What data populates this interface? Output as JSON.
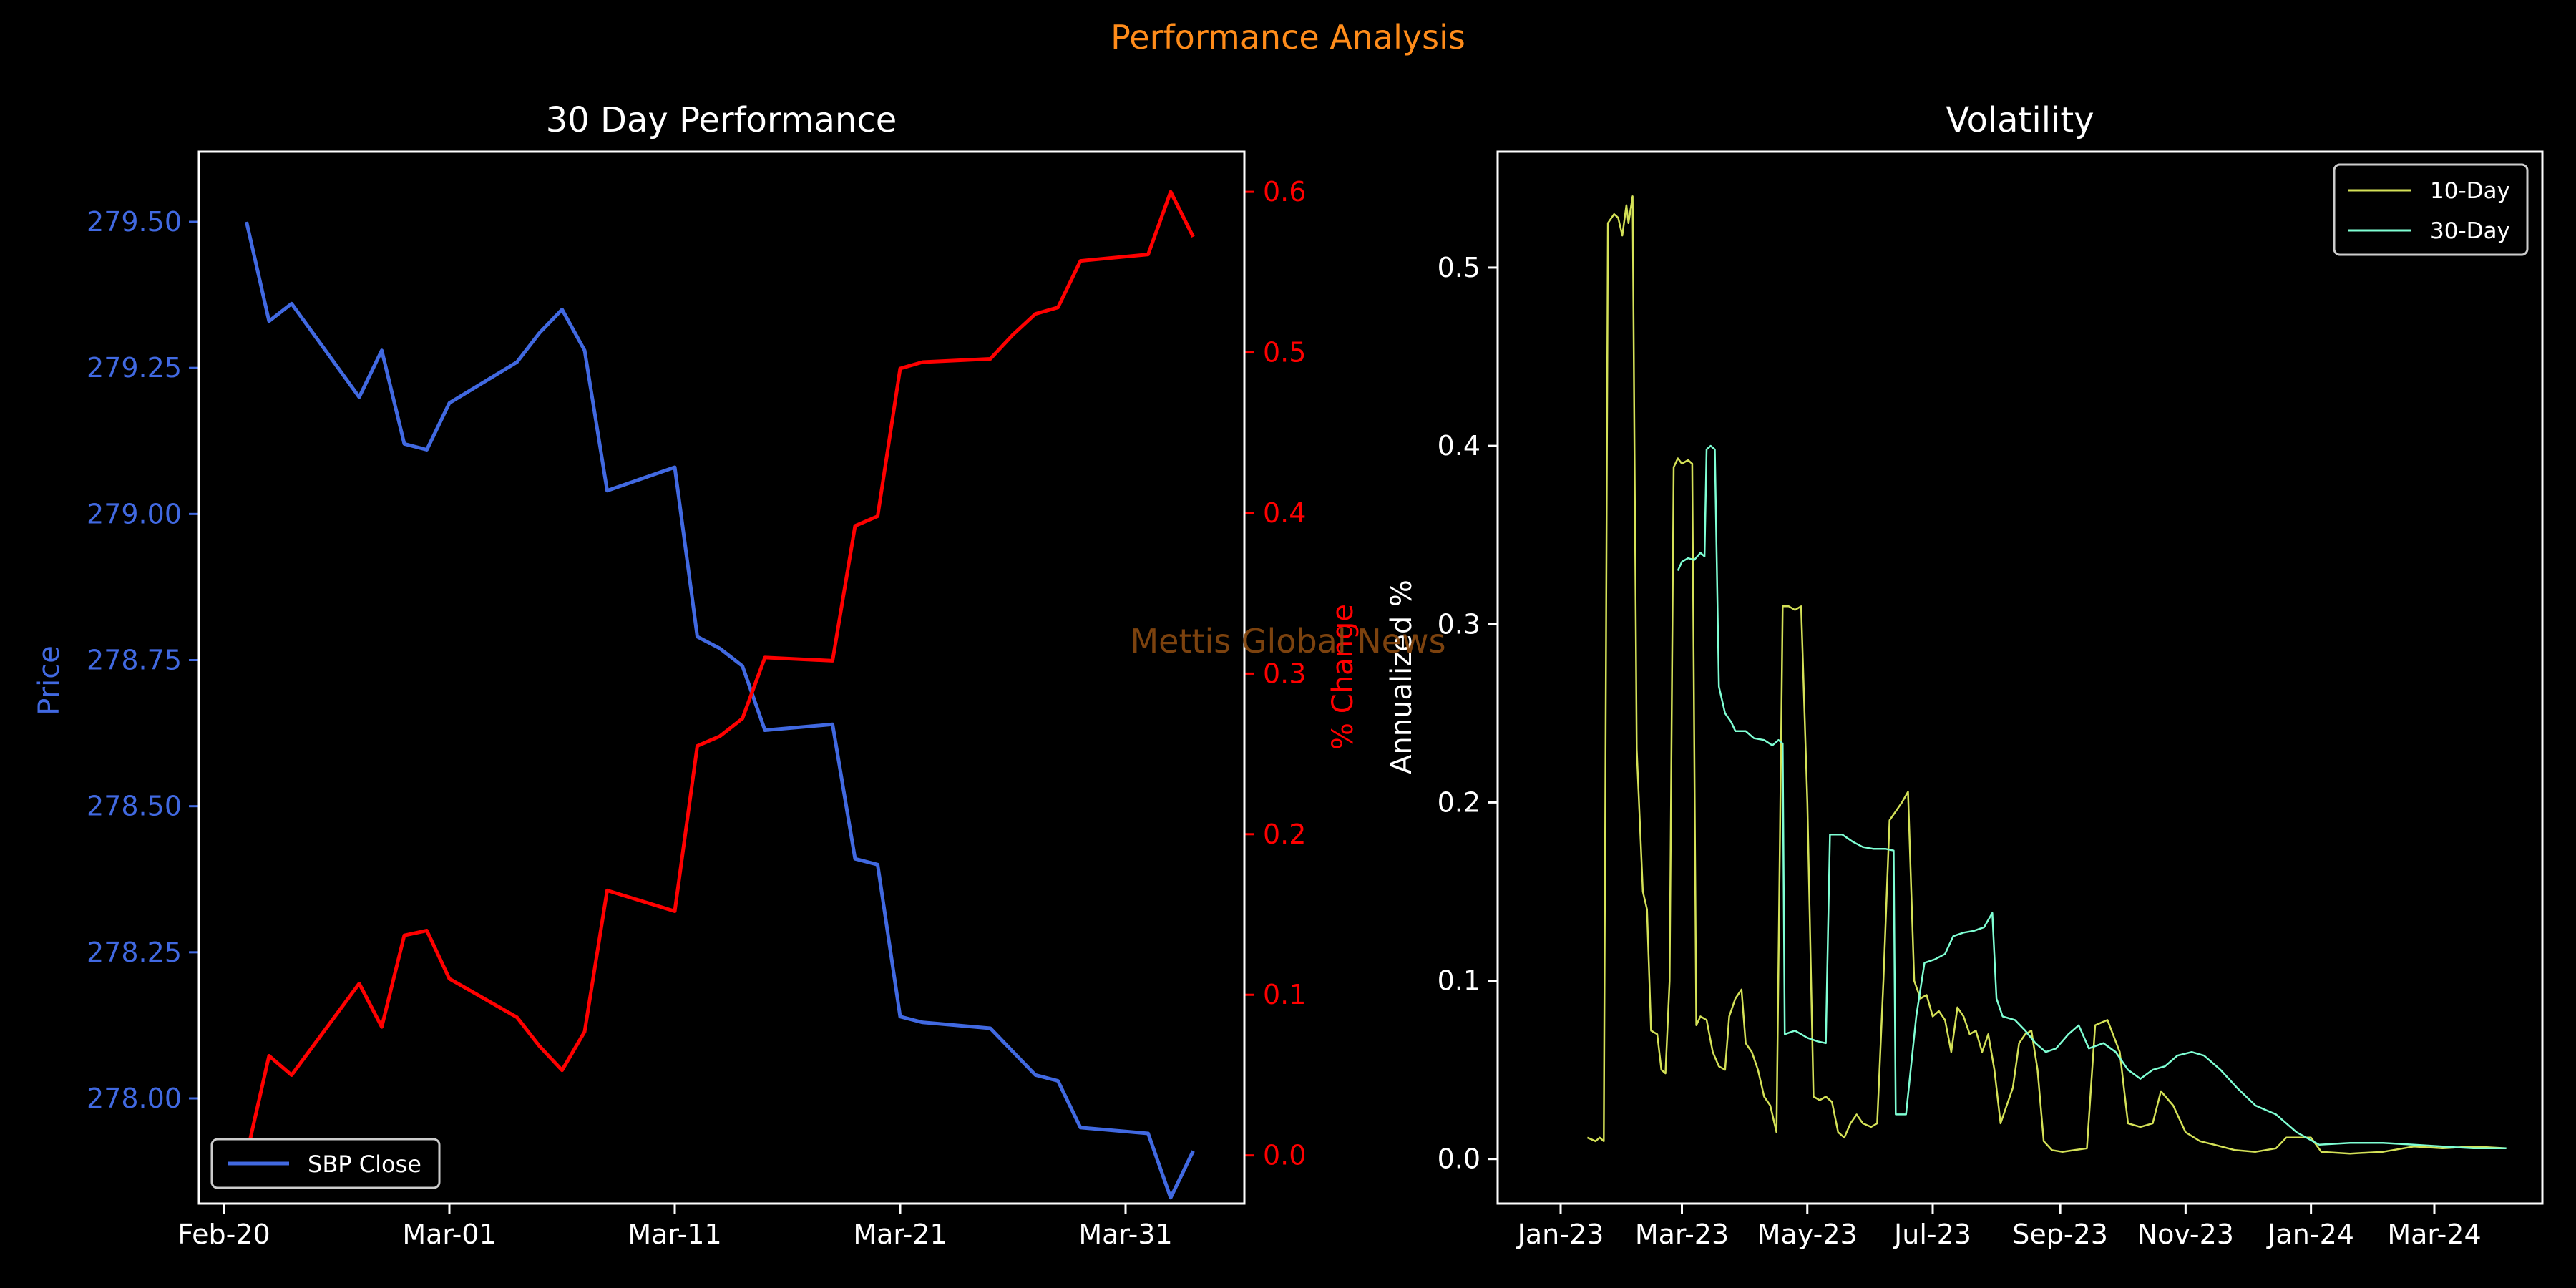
{
  "suptitle": "Performance Analysis",
  "watermark": "Mettis Global News",
  "colors": {
    "background": "#000000",
    "suptitle": "#ff8c1a",
    "watermark": "#8a4a10",
    "price": "#4169e1",
    "pct": "#ff0000",
    "axis": "#ffffff",
    "vol10": "#d4e157",
    "vol30": "#7fffd4"
  },
  "chart_data": [
    {
      "type": "line",
      "title": "30 Day Performance",
      "xlabel": "",
      "ylabel_left": "Price",
      "ylabel_right": "% Change",
      "x_tick_labels": [
        "Feb-20",
        "Mar-01",
        "Mar-11",
        "Mar-21",
        "Mar-31"
      ],
      "ylim_left": [
        277.82,
        279.62
      ],
      "y_ticks_left": [
        "278.00",
        "278.25",
        "278.50",
        "278.75",
        "279.00",
        "279.25",
        "279.50"
      ],
      "ylim_right": [
        -0.03,
        0.625
      ],
      "y_ticks_right": [
        "0.0",
        "0.1",
        "0.2",
        "0.3",
        "0.4",
        "0.5",
        "0.6"
      ],
      "legend": {
        "position": "lower-left",
        "entries": [
          "SBP Close"
        ]
      },
      "x": [
        "02-21",
        "02-22",
        "02-23",
        "02-26",
        "02-27",
        "02-28",
        "02-29",
        "03-01",
        "03-04",
        "03-05",
        "03-06",
        "03-07",
        "03-08",
        "03-11",
        "03-12",
        "03-13",
        "03-14",
        "03-15",
        "03-18",
        "03-19",
        "03-20",
        "03-21",
        "03-22",
        "03-25",
        "03-26",
        "03-27",
        "03-28",
        "03-29",
        "04-01",
        "04-02",
        "04-03"
      ],
      "series": [
        {
          "name": "SBP Close",
          "axis": "left",
          "values": [
            279.5,
            279.33,
            279.36,
            279.2,
            279.28,
            279.12,
            279.11,
            279.19,
            279.26,
            279.31,
            279.35,
            279.28,
            279.04,
            279.08,
            278.79,
            278.77,
            278.74,
            278.63,
            278.64,
            278.41,
            278.4,
            278.14,
            278.13,
            278.12,
            278.08,
            278.04,
            278.03,
            277.95,
            277.94,
            277.83,
            277.91
          ]
        },
        {
          "name": "% Change",
          "axis": "right",
          "values": [
            0.0,
            0.062,
            0.05,
            0.107,
            0.08,
            0.137,
            0.14,
            0.11,
            0.086,
            0.068,
            0.053,
            0.077,
            0.165,
            0.152,
            0.255,
            0.261,
            0.272,
            0.31,
            0.308,
            0.392,
            0.398,
            0.49,
            0.494,
            0.496,
            0.511,
            0.524,
            0.528,
            0.557,
            0.561,
            0.6,
            0.572
          ]
        }
      ]
    },
    {
      "type": "line",
      "title": "Volatility",
      "xlabel": "",
      "ylabel": "Annualized %",
      "x_tick_labels": [
        "Jan-23",
        "Mar-23",
        "May-23",
        "Jul-23",
        "Sep-23",
        "Nov-23",
        "Jan-24",
        "Mar-24"
      ],
      "ylim": [
        -0.025,
        0.565
      ],
      "y_ticks": [
        "0.0",
        "0.1",
        "0.2",
        "0.3",
        "0.4",
        "0.5"
      ],
      "legend": {
        "position": "top-right",
        "entries": [
          "10-Day",
          "30-Day"
        ]
      },
      "series": [
        {
          "name": "10-Day",
          "points": [
            [
              "2023-01-14",
              0.012
            ],
            [
              "2023-01-18",
              0.01
            ],
            [
              "2023-01-20",
              0.012
            ],
            [
              "2023-01-22",
              0.01
            ],
            [
              "2023-01-24",
              0.525
            ],
            [
              "2023-01-27",
              0.53
            ],
            [
              "2023-01-29",
              0.528
            ],
            [
              "2023-01-31",
              0.518
            ],
            [
              "2023-02-02",
              0.535
            ],
            [
              "2023-02-03",
              0.525
            ],
            [
              "2023-02-05",
              0.54
            ],
            [
              "2023-02-07",
              0.23
            ],
            [
              "2023-02-10",
              0.15
            ],
            [
              "2023-02-12",
              0.14
            ],
            [
              "2023-02-14",
              0.072
            ],
            [
              "2023-02-17",
              0.07
            ],
            [
              "2023-02-19",
              0.05
            ],
            [
              "2023-02-21",
              0.048
            ],
            [
              "2023-02-23",
              0.1
            ],
            [
              "2023-02-25",
              0.388
            ],
            [
              "2023-02-27",
              0.393
            ],
            [
              "2023-03-01",
              0.39
            ],
            [
              "2023-03-04",
              0.392
            ],
            [
              "2023-03-06",
              0.39
            ],
            [
              "2023-03-08",
              0.075
            ],
            [
              "2023-03-10",
              0.08
            ],
            [
              "2023-03-13",
              0.078
            ],
            [
              "2023-03-16",
              0.06
            ],
            [
              "2023-03-19",
              0.052
            ],
            [
              "2023-03-22",
              0.05
            ],
            [
              "2023-03-24",
              0.08
            ],
            [
              "2023-03-27",
              0.09
            ],
            [
              "2023-03-30",
              0.095
            ],
            [
              "2023-04-01",
              0.065
            ],
            [
              "2023-04-04",
              0.06
            ],
            [
              "2023-04-07",
              0.05
            ],
            [
              "2023-04-10",
              0.035
            ],
            [
              "2023-04-13",
              0.03
            ],
            [
              "2023-04-16",
              0.015
            ],
            [
              "2023-04-19",
              0.31
            ],
            [
              "2023-04-22",
              0.31
            ],
            [
              "2023-04-25",
              0.308
            ],
            [
              "2023-04-28",
              0.31
            ],
            [
              "2023-05-01",
              0.2
            ],
            [
              "2023-05-04",
              0.035
            ],
            [
              "2023-05-07",
              0.033
            ],
            [
              "2023-05-10",
              0.035
            ],
            [
              "2023-05-13",
              0.032
            ],
            [
              "2023-05-16",
              0.015
            ],
            [
              "2023-05-19",
              0.012
            ],
            [
              "2023-05-22",
              0.02
            ],
            [
              "2023-05-25",
              0.025
            ],
            [
              "2023-05-28",
              0.02
            ],
            [
              "2023-06-01",
              0.018
            ],
            [
              "2023-06-04",
              0.02
            ],
            [
              "2023-06-07",
              0.1
            ],
            [
              "2023-06-10",
              0.19
            ],
            [
              "2023-06-13",
              0.195
            ],
            [
              "2023-06-16",
              0.2
            ],
            [
              "2023-06-19",
              0.206
            ],
            [
              "2023-06-22",
              0.1
            ],
            [
              "2023-06-25",
              0.09
            ],
            [
              "2023-06-28",
              0.092
            ],
            [
              "2023-07-01",
              0.08
            ],
            [
              "2023-07-04",
              0.083
            ],
            [
              "2023-07-07",
              0.078
            ],
            [
              "2023-07-10",
              0.06
            ],
            [
              "2023-07-13",
              0.085
            ],
            [
              "2023-07-16",
              0.08
            ],
            [
              "2023-07-19",
              0.07
            ],
            [
              "2023-07-22",
              0.072
            ],
            [
              "2023-07-25",
              0.06
            ],
            [
              "2023-07-28",
              0.07
            ],
            [
              "2023-07-31",
              0.05
            ],
            [
              "2023-08-03",
              0.02
            ],
            [
              "2023-08-06",
              0.03
            ],
            [
              "2023-08-09",
              0.04
            ],
            [
              "2023-08-12",
              0.065
            ],
            [
              "2023-08-15",
              0.07
            ],
            [
              "2023-08-18",
              0.072
            ],
            [
              "2023-08-21",
              0.05
            ],
            [
              "2023-08-24",
              0.01
            ],
            [
              "2023-08-28",
              0.005
            ],
            [
              "2023-09-02",
              0.004
            ],
            [
              "2023-09-08",
              0.005
            ],
            [
              "2023-09-14",
              0.006
            ],
            [
              "2023-09-18",
              0.075
            ],
            [
              "2023-09-24",
              0.078
            ],
            [
              "2023-09-30",
              0.06
            ],
            [
              "2023-10-04",
              0.02
            ],
            [
              "2023-10-10",
              0.018
            ],
            [
              "2023-10-16",
              0.02
            ],
            [
              "2023-10-20",
              0.038
            ],
            [
              "2023-10-26",
              0.03
            ],
            [
              "2023-11-01",
              0.015
            ],
            [
              "2023-11-08",
              0.01
            ],
            [
              "2023-11-15",
              0.008
            ],
            [
              "2023-11-25",
              0.005
            ],
            [
              "2023-12-05",
              0.004
            ],
            [
              "2023-12-15",
              0.006
            ],
            [
              "2023-12-20",
              0.012
            ],
            [
              "2024-01-01",
              0.012
            ],
            [
              "2024-01-06",
              0.004
            ],
            [
              "2024-01-20",
              0.003
            ],
            [
              "2024-02-05",
              0.004
            ],
            [
              "2024-02-20",
              0.007
            ],
            [
              "2024-03-05",
              0.006
            ],
            [
              "2024-03-20",
              0.007
            ],
            [
              "2024-04-05",
              0.006
            ]
          ]
        },
        {
          "name": "30-Day",
          "points": [
            [
              "2023-02-27",
              0.33
            ],
            [
              "2023-03-01",
              0.335
            ],
            [
              "2023-03-04",
              0.337
            ],
            [
              "2023-03-07",
              0.336
            ],
            [
              "2023-03-10",
              0.34
            ],
            [
              "2023-03-12",
              0.338
            ],
            [
              "2023-03-13",
              0.398
            ],
            [
              "2023-03-15",
              0.4
            ],
            [
              "2023-03-17",
              0.398
            ],
            [
              "2023-03-19",
              0.265
            ],
            [
              "2023-03-22",
              0.25
            ],
            [
              "2023-03-25",
              0.245
            ],
            [
              "2023-03-27",
              0.24
            ],
            [
              "2023-04-01",
              0.24
            ],
            [
              "2023-04-05",
              0.236
            ],
            [
              "2023-04-10",
              0.235
            ],
            [
              "2023-04-14",
              0.232
            ],
            [
              "2023-04-17",
              0.235
            ],
            [
              "2023-04-19",
              0.233
            ],
            [
              "2023-04-20",
              0.07
            ],
            [
              "2023-04-25",
              0.072
            ],
            [
              "2023-05-01",
              0.068
            ],
            [
              "2023-05-06",
              0.066
            ],
            [
              "2023-05-10",
              0.065
            ],
            [
              "2023-05-12",
              0.182
            ],
            [
              "2023-05-18",
              0.182
            ],
            [
              "2023-05-23",
              0.178
            ],
            [
              "2023-05-28",
              0.175
            ],
            [
              "2023-06-02",
              0.174
            ],
            [
              "2023-06-08",
              0.174
            ],
            [
              "2023-06-12",
              0.173
            ],
            [
              "2023-06-13",
              0.025
            ],
            [
              "2023-06-18",
              0.025
            ],
            [
              "2023-06-23",
              0.08
            ],
            [
              "2023-06-27",
              0.11
            ],
            [
              "2023-07-02",
              0.112
            ],
            [
              "2023-07-07",
              0.115
            ],
            [
              "2023-07-11",
              0.125
            ],
            [
              "2023-07-16",
              0.127
            ],
            [
              "2023-07-21",
              0.128
            ],
            [
              "2023-07-26",
              0.13
            ],
            [
              "2023-07-30",
              0.138
            ],
            [
              "2023-08-01",
              0.09
            ],
            [
              "2023-08-04",
              0.08
            ],
            [
              "2023-08-10",
              0.078
            ],
            [
              "2023-08-15",
              0.072
            ],
            [
              "2023-08-20",
              0.065
            ],
            [
              "2023-08-25",
              0.06
            ],
            [
              "2023-08-30",
              0.062
            ],
            [
              "2023-09-05",
              0.07
            ],
            [
              "2023-09-10",
              0.075
            ],
            [
              "2023-09-15",
              0.062
            ],
            [
              "2023-09-22",
              0.065
            ],
            [
              "2023-09-28",
              0.06
            ],
            [
              "2023-10-04",
              0.05
            ],
            [
              "2023-10-10",
              0.045
            ],
            [
              "2023-10-16",
              0.05
            ],
            [
              "2023-10-22",
              0.052
            ],
            [
              "2023-10-28",
              0.058
            ],
            [
              "2023-11-04",
              0.06
            ],
            [
              "2023-11-10",
              0.058
            ],
            [
              "2023-11-18",
              0.05
            ],
            [
              "2023-11-26",
              0.04
            ],
            [
              "2023-12-05",
              0.03
            ],
            [
              "2023-12-15",
              0.025
            ],
            [
              "2023-12-25",
              0.015
            ],
            [
              "2024-01-05",
              0.008
            ],
            [
              "2024-01-20",
              0.009
            ],
            [
              "2024-02-05",
              0.009
            ],
            [
              "2024-02-20",
              0.008
            ],
            [
              "2024-03-05",
              0.007
            ],
            [
              "2024-03-20",
              0.006
            ],
            [
              "2024-04-05",
              0.006
            ]
          ]
        }
      ]
    }
  ]
}
